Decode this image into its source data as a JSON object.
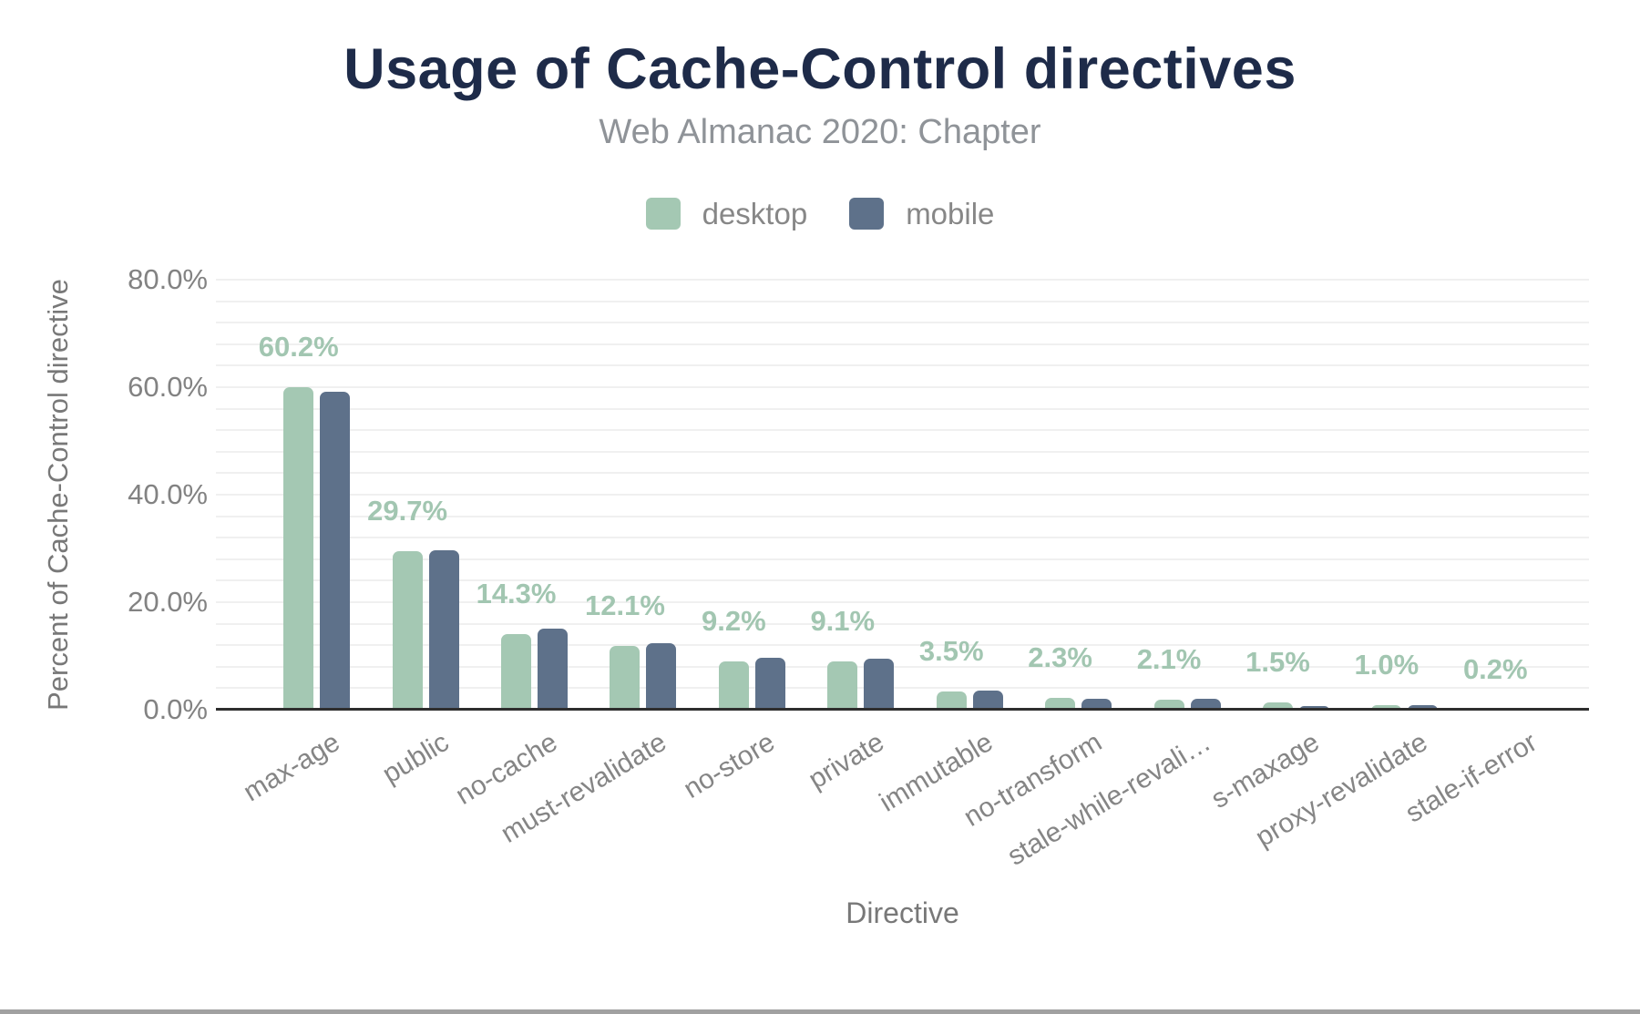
{
  "chart_data": {
    "type": "bar",
    "title": "Usage of Cache-Control directives",
    "subtitle": "Web Almanac 2020: Chapter",
    "xlabel": "Directive",
    "ylabel": "Percent of Cache-Control directive",
    "categories": [
      "max-age",
      "public",
      "no-cache",
      "must-revalidate",
      "no-store",
      "private",
      "immutable",
      "no-transform",
      "stale-while-revalidate",
      "s-maxage",
      "proxy-revalidate",
      "stale-if-error"
    ],
    "category_display": [
      "max-age",
      "public",
      "no-cache",
      "must-revalidate",
      "no-store",
      "private",
      "immutable",
      "no-transform",
      "stale-while-revali…",
      "s-maxage",
      "proxy-revalidate",
      "stale-if-error"
    ],
    "series": [
      {
        "name": "desktop",
        "color": "#a4c8b3",
        "values": [
          60.2,
          29.7,
          14.3,
          12.1,
          9.2,
          9.1,
          3.5,
          2.3,
          2.1,
          1.5,
          1.0,
          0.2
        ]
      },
      {
        "name": "mobile",
        "color": "#5e718a",
        "values": [
          59.4,
          29.8,
          15.2,
          12.6,
          9.8,
          9.7,
          3.7,
          2.2,
          2.2,
          0.9,
          1.0,
          0.2
        ]
      }
    ],
    "data_labels": [
      "60.2%",
      "29.7%",
      "14.3%",
      "12.1%",
      "9.2%",
      "9.1%",
      "3.5%",
      "2.3%",
      "2.1%",
      "1.5%",
      "1.0%",
      "0.2%"
    ],
    "data_label_series": "desktop",
    "y_axis": {
      "min": 0,
      "max": 80,
      "minor_grid_step": 4,
      "ticks": [
        {
          "value": 80,
          "label": "80.0%"
        },
        {
          "value": 60,
          "label": "60.0%"
        },
        {
          "value": 40,
          "label": "40.0%"
        },
        {
          "value": 20,
          "label": "20.0%"
        },
        {
          "value": 0,
          "label": "0.0%"
        }
      ]
    },
    "legend": {
      "position": "top",
      "entries": [
        "desktop",
        "mobile"
      ]
    },
    "grid": true,
    "colors": {
      "title": "#1e2b49",
      "subtitle": "#8f9398",
      "legend_text": "#878787",
      "axis_tick_text": "#828282",
      "category_text": "#858585",
      "axis_title_text": "#787878",
      "data_label": "#a2c6b1",
      "grid_line": "#f0f0f0",
      "axis_line": "#2e2e2e",
      "bottom_strip": "#a1a1a1"
    }
  }
}
